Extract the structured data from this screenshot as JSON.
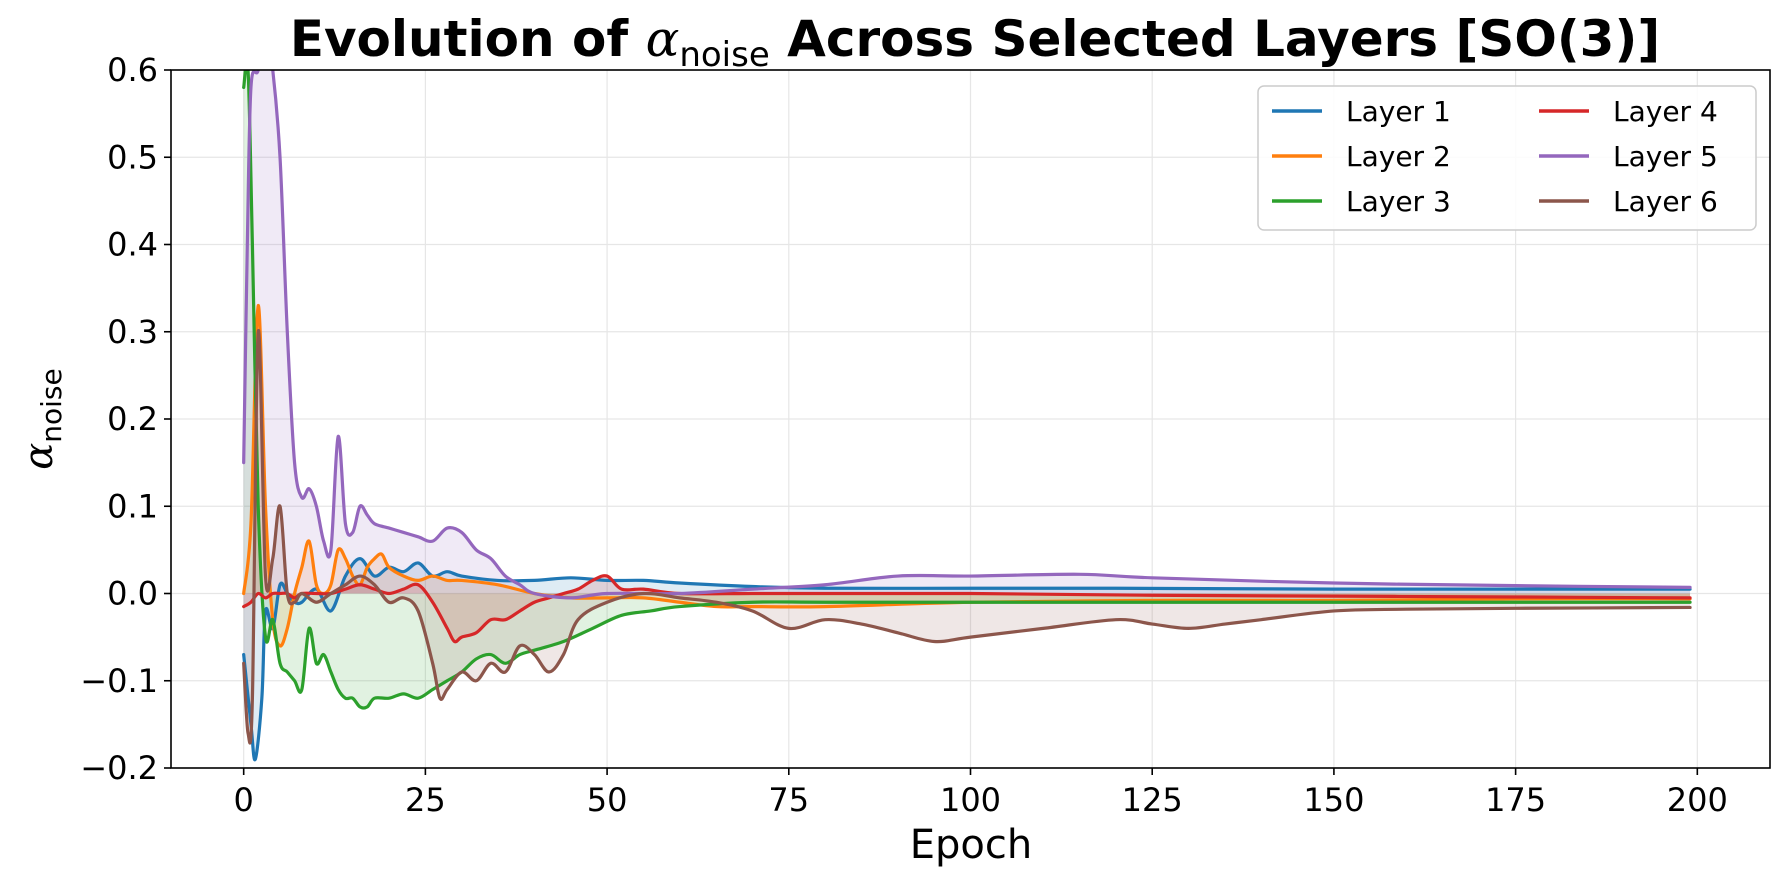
{
  "chart_data": {
    "type": "line",
    "title": {
      "prefix": "Evolution of ",
      "symbol": "α",
      "subscript": "noise",
      "suffix": " Across Selected Layers [SO(3)]"
    },
    "xlabel": "Epoch",
    "ylabel": {
      "symbol": "α",
      "subscript": "noise"
    },
    "xlim": [
      -10,
      210
    ],
    "ylim": [
      -0.2,
      0.6
    ],
    "xticks": [
      0,
      25,
      50,
      75,
      100,
      125,
      150,
      175,
      200
    ],
    "yticks": [
      -0.2,
      -0.1,
      0.0,
      0.1,
      0.2,
      0.3,
      0.4,
      0.5,
      0.6
    ],
    "xtick_labels": [
      "0",
      "25",
      "50",
      "75",
      "100",
      "125",
      "150",
      "175",
      "200"
    ],
    "ytick_labels": [
      "−0.2",
      "−0.1",
      "0.0",
      "0.1",
      "0.2",
      "0.3",
      "0.4",
      "0.5",
      "0.6"
    ],
    "grid": true,
    "legend_position": "top-right",
    "legend_columns": 2,
    "fill_to_zero": true,
    "series": [
      {
        "name": "Layer 1",
        "color": "#1f77b4",
        "x": [
          0,
          1,
          1.6,
          2.5,
          3,
          4,
          5,
          6,
          7,
          8,
          10,
          12,
          14,
          16,
          18,
          20,
          22,
          24,
          26,
          28,
          30,
          35,
          40,
          45,
          50,
          55,
          60,
          70,
          80,
          100,
          120,
          150,
          175,
          199
        ],
        "y": [
          -0.07,
          -0.15,
          -0.19,
          -0.12,
          -0.02,
          -0.04,
          0.01,
          0.0,
          -0.01,
          -0.01,
          0.005,
          -0.02,
          0.02,
          0.04,
          0.02,
          0.03,
          0.025,
          0.035,
          0.02,
          0.025,
          0.02,
          0.015,
          0.015,
          0.018,
          0.015,
          0.015,
          0.012,
          0.008,
          0.006,
          0.006,
          0.006,
          0.005,
          0.005,
          0.005
        ]
      },
      {
        "name": "Layer 2",
        "color": "#ff7f0e",
        "x": [
          0,
          1,
          2,
          3,
          4,
          5,
          6,
          7,
          8,
          9,
          10,
          11,
          12,
          13,
          14,
          15,
          16,
          17,
          18,
          19,
          20,
          22,
          24,
          26,
          28,
          30,
          35,
          40,
          45,
          50,
          55,
          60,
          65,
          70,
          80,
          100,
          125,
          150,
          175,
          199
        ],
        "y": [
          0.0,
          0.08,
          0.33,
          0.1,
          -0.03,
          -0.06,
          -0.04,
          0.0,
          0.03,
          0.06,
          0.01,
          0.0,
          0.01,
          0.05,
          0.04,
          0.02,
          0.01,
          0.03,
          0.04,
          0.045,
          0.03,
          0.02,
          0.015,
          0.02,
          0.015,
          0.015,
          0.01,
          0.0,
          -0.005,
          -0.005,
          -0.005,
          -0.01,
          -0.015,
          -0.015,
          -0.015,
          -0.01,
          -0.008,
          -0.008,
          -0.006,
          -0.006
        ]
      },
      {
        "name": "Layer 3",
        "color": "#2ca02c",
        "x": [
          0,
          0.6,
          1.2,
          2,
          3,
          4,
          5,
          6,
          7,
          8,
          9,
          10,
          11,
          12,
          13,
          14,
          15,
          16,
          17,
          18,
          20,
          22,
          24,
          26,
          28,
          30,
          32,
          34,
          36,
          38,
          40,
          44,
          48,
          52,
          56,
          60,
          70,
          80,
          100,
          125,
          150,
          175,
          199
        ],
        "y": [
          0.58,
          0.6,
          0.4,
          0.1,
          -0.05,
          -0.03,
          -0.08,
          -0.09,
          -0.1,
          -0.11,
          -0.04,
          -0.08,
          -0.07,
          -0.09,
          -0.11,
          -0.12,
          -0.12,
          -0.13,
          -0.13,
          -0.12,
          -0.12,
          -0.115,
          -0.12,
          -0.11,
          -0.1,
          -0.09,
          -0.075,
          -0.07,
          -0.08,
          -0.07,
          -0.065,
          -0.055,
          -0.04,
          -0.025,
          -0.02,
          -0.015,
          -0.01,
          -0.01,
          -0.01,
          -0.01,
          -0.01,
          -0.01,
          -0.01
        ]
      },
      {
        "name": "Layer 4",
        "color": "#d62728",
        "x": [
          0,
          1,
          2,
          3,
          4,
          5,
          6,
          7,
          8,
          10,
          12,
          14,
          16,
          18,
          20,
          22,
          24,
          26,
          28,
          29,
          30,
          32,
          34,
          36,
          38,
          40,
          42,
          44,
          46,
          48,
          50,
          52,
          55,
          60,
          70,
          80,
          100,
          125,
          150,
          175,
          199
        ],
        "y": [
          -0.015,
          -0.01,
          0.0,
          -0.005,
          0.0,
          0.0,
          0.0,
          -0.005,
          0.0,
          0.0,
          0.0,
          0.005,
          0.01,
          0.005,
          0.0,
          0.005,
          0.01,
          -0.01,
          -0.04,
          -0.055,
          -0.05,
          -0.045,
          -0.03,
          -0.03,
          -0.02,
          -0.01,
          -0.005,
          0.0,
          0.005,
          0.015,
          0.02,
          0.005,
          0.005,
          0.0,
          0.0,
          0.0,
          0.0,
          -0.002,
          -0.003,
          -0.004,
          -0.005
        ]
      },
      {
        "name": "Layer 5",
        "color": "#9467bd",
        "x": [
          0,
          0.5,
          1,
          2,
          3,
          4,
          5,
          6,
          7,
          8,
          9,
          10,
          11,
          12,
          13,
          14,
          15,
          16,
          17,
          18,
          20,
          22,
          24,
          26,
          28,
          30,
          32,
          34,
          36,
          38,
          40,
          45,
          50,
          60,
          70,
          80,
          90,
          100,
          115,
          125,
          150,
          175,
          199
        ],
        "y": [
          0.15,
          0.4,
          0.58,
          0.6,
          0.65,
          0.6,
          0.5,
          0.3,
          0.15,
          0.11,
          0.12,
          0.1,
          0.06,
          0.05,
          0.18,
          0.08,
          0.07,
          0.1,
          0.09,
          0.08,
          0.075,
          0.07,
          0.065,
          0.06,
          0.075,
          0.07,
          0.05,
          0.04,
          0.02,
          0.01,
          0.0,
          -0.005,
          0.0,
          0.0,
          0.005,
          0.01,
          0.02,
          0.02,
          0.022,
          0.018,
          0.012,
          0.009,
          0.007
        ]
      },
      {
        "name": "Layer 6",
        "color": "#8c564b",
        "x": [
          0,
          0.6,
          1.2,
          2,
          3,
          4,
          5,
          6,
          7,
          8,
          10,
          12,
          14,
          16,
          18,
          20,
          22,
          24,
          26,
          27,
          28,
          30,
          32,
          34,
          36,
          38,
          40,
          42,
          44,
          46,
          50,
          55,
          60,
          65,
          70,
          75,
          80,
          85,
          90,
          95,
          100,
          110,
          120,
          125,
          130,
          135,
          140,
          150,
          160,
          175,
          199
        ],
        "y": [
          -0.08,
          -0.16,
          -0.12,
          0.3,
          0.02,
          0.04,
          0.1,
          0.0,
          -0.01,
          0.0,
          -0.01,
          0.0,
          0.01,
          0.02,
          0.01,
          -0.01,
          -0.005,
          -0.02,
          -0.08,
          -0.12,
          -0.11,
          -0.09,
          -0.1,
          -0.08,
          -0.09,
          -0.06,
          -0.07,
          -0.09,
          -0.07,
          -0.03,
          -0.01,
          0.0,
          -0.005,
          -0.01,
          -0.02,
          -0.04,
          -0.03,
          -0.035,
          -0.045,
          -0.055,
          -0.05,
          -0.04,
          -0.03,
          -0.035,
          -0.04,
          -0.035,
          -0.03,
          -0.02,
          -0.018,
          -0.017,
          -0.016
        ]
      }
    ]
  }
}
